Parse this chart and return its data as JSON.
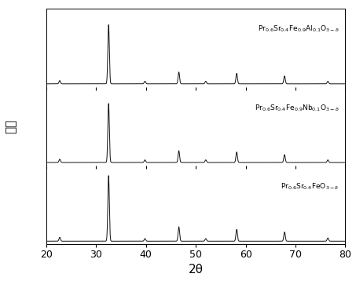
{
  "xlabel": "2θ",
  "ylabel": "强度",
  "xlim": [
    20,
    80
  ],
  "x_ticks": [
    20,
    30,
    40,
    50,
    60,
    70,
    80
  ],
  "background_color": "#ffffff",
  "line_color": "#111111",
  "peaks": [
    22.7,
    32.5,
    39.8,
    46.6,
    52.0,
    58.2,
    67.8,
    76.5
  ],
  "peak_heights_bottom": [
    0.06,
    1.0,
    0.04,
    0.22,
    0.04,
    0.18,
    0.14,
    0.05
  ],
  "peak_heights_mid": [
    0.05,
    0.9,
    0.04,
    0.18,
    0.04,
    0.16,
    0.12,
    0.04
  ],
  "peak_heights_top": [
    0.05,
    0.9,
    0.04,
    0.18,
    0.04,
    0.16,
    0.12,
    0.04
  ],
  "sigma": 0.15,
  "label_bottom": "Pr$_{0.6}$Sr$_{0.4}$FeO$_{3-\\delta}$",
  "label_mid": "Pr$_{0.6}$Sr$_{0.4}$Fe$_{0.9}$Nb$_{0.1}$O$_{3-\\delta}$",
  "label_top": "Pr$_{0.6}$Sr$_{0.4}$Fe$_{0.9}$Al$_{0.1}$O$_{3-\\delta}$"
}
